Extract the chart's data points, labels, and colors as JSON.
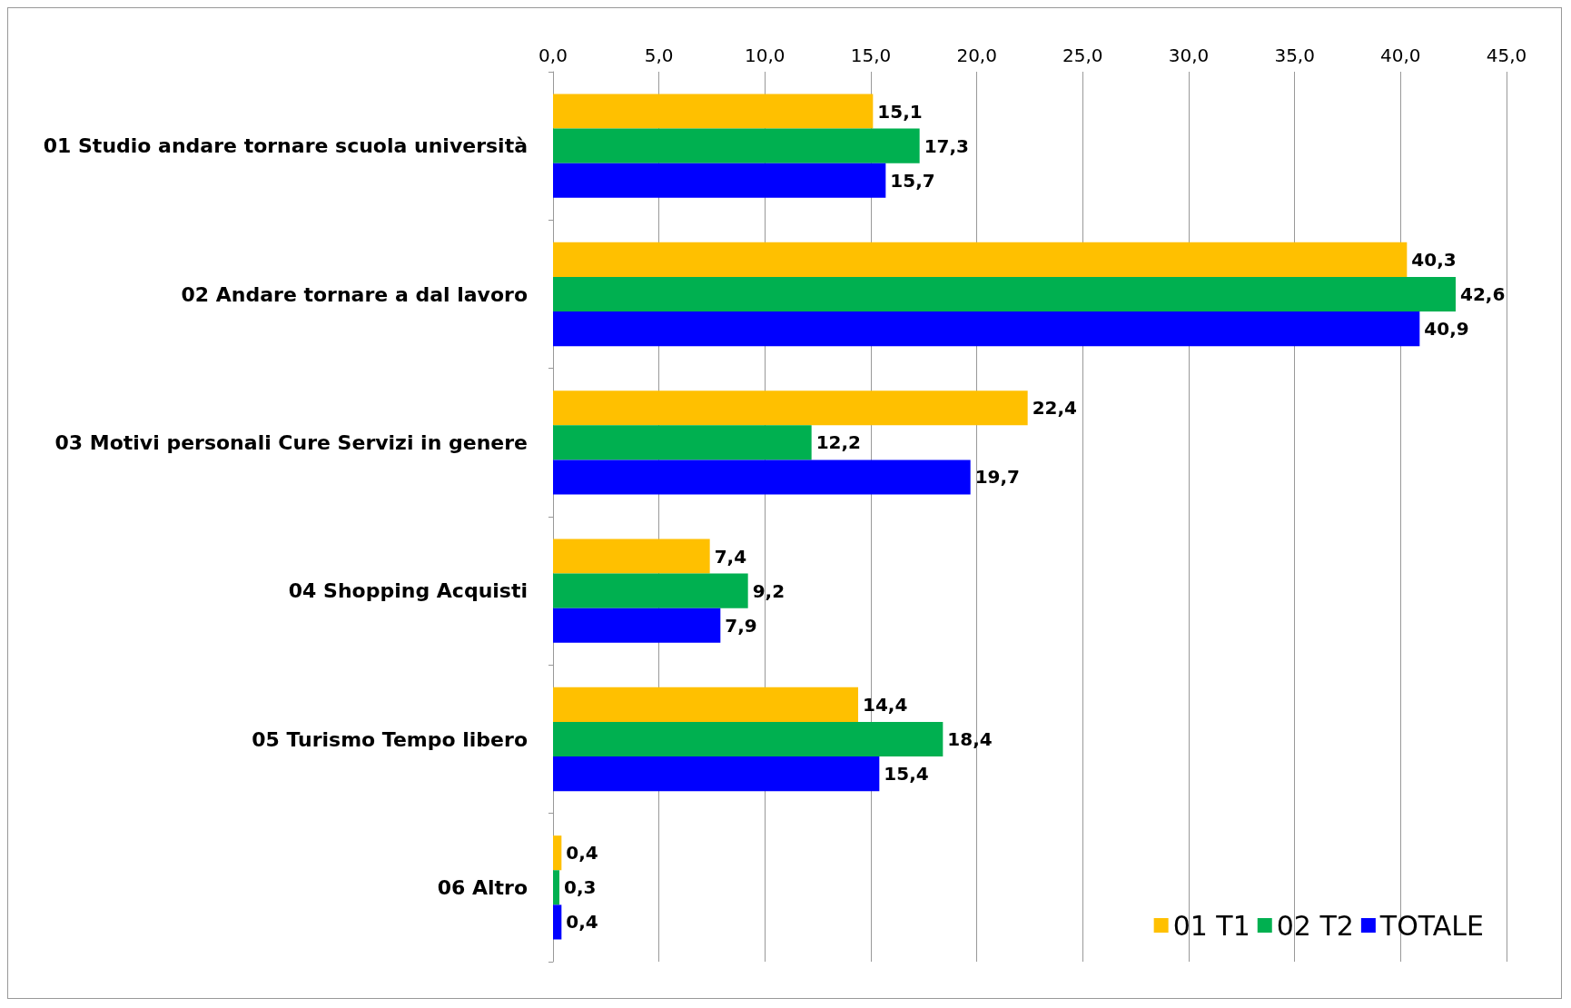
{
  "chart_data": {
    "type": "bar",
    "orientation": "horizontal",
    "categories": [
      "01 Studio andare tornare scuola università",
      "02 Andare tornare a dal lavoro",
      "03 Motivi personali Cure Servizi in genere",
      "04 Shopping Acquisti",
      "05 Turismo Tempo libero",
      "06 Altro"
    ],
    "series": [
      {
        "name": "01 T1",
        "color": "#ffc000",
        "values": [
          15.1,
          40.3,
          22.4,
          7.4,
          14.4,
          0.4
        ],
        "value_labels": [
          "15,1",
          "40,3",
          "22,4",
          "7,4",
          "14,4",
          "0,4"
        ]
      },
      {
        "name": "02 T2",
        "color": "#00b050",
        "values": [
          17.3,
          42.6,
          12.2,
          9.2,
          18.4,
          0.3
        ],
        "value_labels": [
          "17,3",
          "42,6",
          "12,2",
          "9,2",
          "18,4",
          "0,3"
        ]
      },
      {
        "name": "TOTALE",
        "color": "#0000ff",
        "values": [
          15.7,
          40.9,
          19.7,
          7.9,
          15.4,
          0.4
        ],
        "value_labels": [
          "15,7",
          "40,9",
          "19,7",
          "7,9",
          "15,4",
          "0,4"
        ]
      }
    ],
    "xlim": [
      0,
      45
    ],
    "xticks": [
      {
        "value": 0,
        "label": "0,0"
      },
      {
        "value": 5,
        "label": "5,0"
      },
      {
        "value": 10,
        "label": "10,0"
      },
      {
        "value": 15,
        "label": "15,0"
      },
      {
        "value": 20,
        "label": "20,0"
      },
      {
        "value": 25,
        "label": "25,0"
      },
      {
        "value": 30,
        "label": "30,0"
      },
      {
        "value": 35,
        "label": "35,0"
      },
      {
        "value": 40,
        "label": "40,0"
      },
      {
        "value": 45,
        "label": "45,0"
      }
    ],
    "grid": "x",
    "legend": "bottom right"
  }
}
